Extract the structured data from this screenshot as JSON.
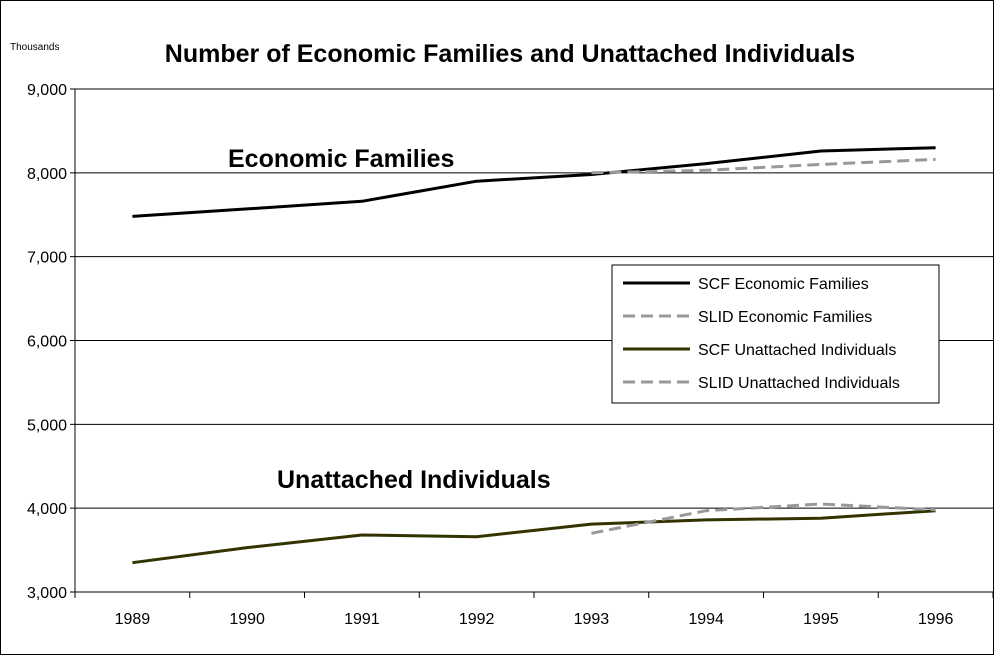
{
  "chart_data": {
    "type": "line",
    "title": "Number of Economic Families and Unattached Individuals",
    "y_unit_label": "Thousands",
    "xlabel": "",
    "ylabel": "",
    "categories": [
      "1989",
      "1990",
      "1991",
      "1992",
      "1993",
      "1994",
      "1995",
      "1996"
    ],
    "ylim": [
      3000,
      9000
    ],
    "yticks": [
      3000,
      4000,
      5000,
      6000,
      7000,
      8000,
      9000
    ],
    "ytick_labels": [
      "3,000",
      "4,000",
      "5,000",
      "6,000",
      "7,000",
      "8,000",
      "9,000"
    ],
    "grid": "horizontal",
    "legend_position": "center-right",
    "annotations": [
      "Economic Families",
      "Unattached Individuals"
    ],
    "series": [
      {
        "name": "SCF Economic Families",
        "color": "#000000",
        "dashed": false,
        "values": [
          7480,
          7570,
          7660,
          7900,
          7980,
          8110,
          8260,
          8300
        ]
      },
      {
        "name": "SLID Economic Families",
        "color": "#999999",
        "dashed": true,
        "values": [
          null,
          null,
          null,
          null,
          8000,
          8030,
          8100,
          8160
        ]
      },
      {
        "name": "SCF Unattached Individuals",
        "color": "#333300",
        "dashed": false,
        "values": [
          3350,
          3530,
          3680,
          3660,
          3810,
          3860,
          3880,
          3970
        ]
      },
      {
        "name": "SLID Unattached Individuals",
        "color": "#999999",
        "dashed": true,
        "values": [
          null,
          null,
          null,
          null,
          3700,
          3970,
          4050,
          3980
        ]
      }
    ]
  }
}
